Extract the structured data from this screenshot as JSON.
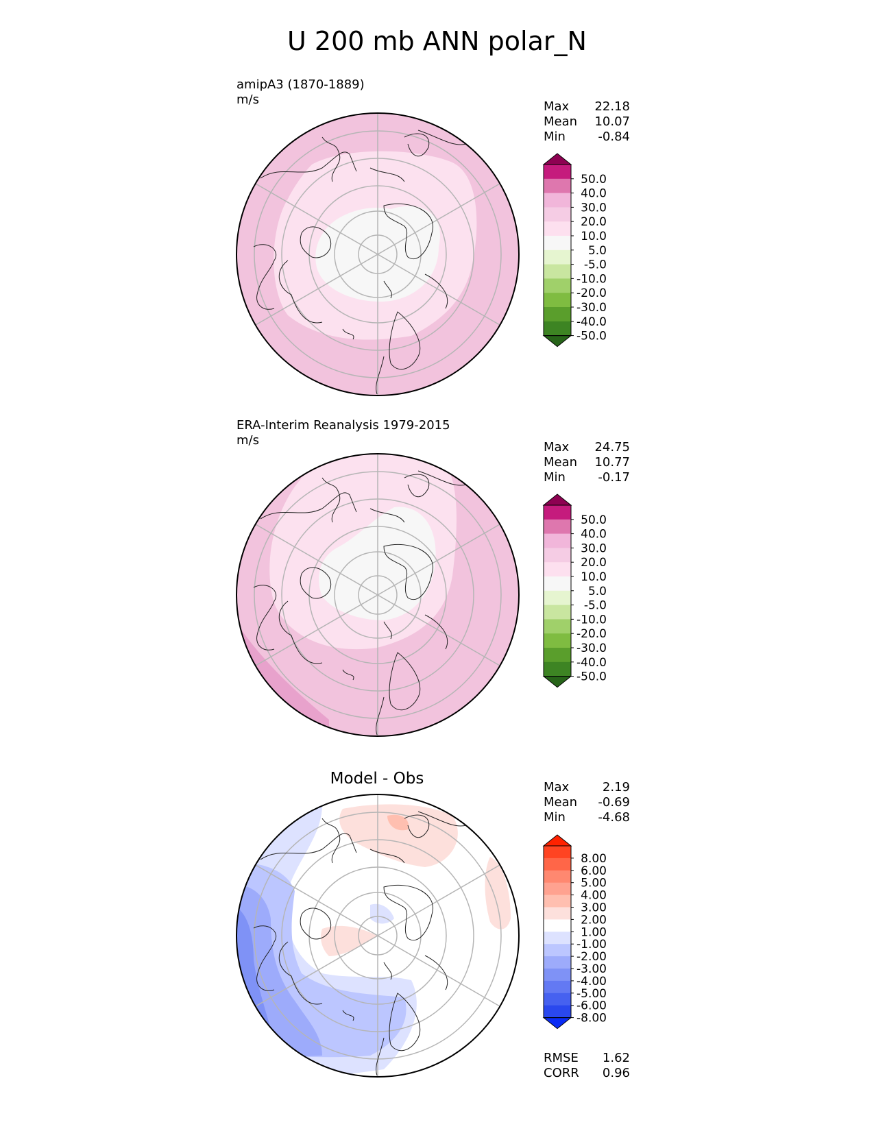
{
  "title": "U 200 mb ANN polar_N",
  "panels": [
    {
      "heading": "amipA3 (1870-1889)",
      "units": "m/s",
      "stats": [
        {
          "label": "Max",
          "value": "22.18"
        },
        {
          "label": "Mean",
          "value": "10.07"
        },
        {
          "label": "Min",
          "value": "-0.84"
        }
      ]
    },
    {
      "heading": "ERA-Interim Reanalysis 1979-2015",
      "units": "m/s",
      "stats": [
        {
          "label": "Max",
          "value": "24.75"
        },
        {
          "label": "Mean",
          "value": "10.77"
        },
        {
          "label": "Min",
          "value": "-0.17"
        }
      ]
    },
    {
      "heading": "Model - Obs",
      "stats": [
        {
          "label": "Max",
          "value": "2.19"
        },
        {
          "label": "Mean",
          "value": "-0.69"
        },
        {
          "label": "Min",
          "value": "-4.68"
        }
      ],
      "metrics": [
        {
          "label": "RMSE",
          "value": "1.62"
        },
        {
          "label": "CORR",
          "value": "0.96"
        }
      ]
    }
  ],
  "colorbars": {
    "field": {
      "ticks": [
        "50.0",
        "40.0",
        "30.0",
        "20.0",
        "10.0",
        "5.0",
        "-5.0",
        "-10.0",
        "-20.0",
        "-30.0",
        "-40.0",
        "-50.0"
      ],
      "colors": [
        "#8e0152",
        "#c51b7d",
        "#de77ae",
        "#f1b6da",
        "#f5cce4",
        "#fde0ef",
        "#f7f7f7",
        "#e6f5d0",
        "#c9e6a0",
        "#a0d06a",
        "#7fbc41",
        "#5a9e2c",
        "#3d8423",
        "#276419"
      ]
    },
    "diff": {
      "ticks": [
        "8.00",
        "6.00",
        "5.00",
        "4.00",
        "3.00",
        "2.00",
        "1.00",
        "-1.00",
        "-2.00",
        "-3.00",
        "-4.00",
        "-5.00",
        "-6.00",
        "-8.00"
      ],
      "colors": [
        "#ff2200",
        "#ff4422",
        "#ff6648",
        "#ff8870",
        "#ffa290",
        "#ffbfb0",
        "#fde0dc",
        "#ffffff",
        "#dde2ff",
        "#bcc6ff",
        "#9dabfb",
        "#7f92f6",
        "#6379f3",
        "#4661f0",
        "#2a48ee",
        "#0a2cf5"
      ]
    }
  },
  "chart_data": [
    {
      "type": "heatmap",
      "title": "amipA3 (1870-1889)",
      "units": "m/s",
      "projection": "north polar stereographic",
      "levels": [
        -50,
        -40,
        -30,
        -20,
        -10,
        -5,
        5,
        10,
        20,
        30,
        40,
        50
      ],
      "max": 22.18,
      "mean": 10.07,
      "min": -0.84
    },
    {
      "type": "heatmap",
      "title": "ERA-Interim Reanalysis 1979-2015",
      "units": "m/s",
      "projection": "north polar stereographic",
      "levels": [
        -50,
        -40,
        -30,
        -20,
        -10,
        -5,
        5,
        10,
        20,
        30,
        40,
        50
      ],
      "max": 24.75,
      "mean": 10.77,
      "min": -0.17
    },
    {
      "type": "heatmap",
      "title": "Model - Obs",
      "projection": "north polar stereographic",
      "levels": [
        -8,
        -6,
        -5,
        -4,
        -3,
        -2,
        -1,
        1,
        2,
        3,
        4,
        5,
        6,
        8
      ],
      "max": 2.19,
      "mean": -0.69,
      "min": -4.68,
      "rmse": 1.62,
      "corr": 0.96
    }
  ]
}
